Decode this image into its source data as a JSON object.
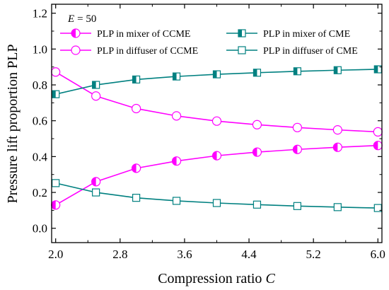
{
  "chart_data": {
    "type": "line",
    "annotation": {
      "var": "E",
      "value": "= 50"
    },
    "xlabel": {
      "text": "Compression ratio ",
      "var": "C"
    },
    "ylabel": "Pressure lift proportion PLP",
    "xlim": [
      1.95,
      6.05
    ],
    "ylim": [
      -0.08,
      1.25
    ],
    "xticks": [
      2.0,
      2.8,
      3.6,
      4.4,
      5.2,
      6.0
    ],
    "xtick_labels": [
      "2.0",
      "2.8",
      "3.6",
      "4.4",
      "5.2",
      "6.0"
    ],
    "yticks": [
      0.0,
      0.2,
      0.4,
      0.6,
      0.8,
      1.0,
      1.2
    ],
    "ytick_labels": [
      "0.0",
      "0.2",
      "0.4",
      "0.6",
      "0.8",
      "1.0",
      "1.2"
    ],
    "x": [
      2.0,
      2.5,
      3.0,
      3.5,
      4.0,
      4.5,
      5.0,
      5.5,
      6.0
    ],
    "series": [
      {
        "name": "PLP in mixer of CCME",
        "color": "#ff00ff",
        "marker": "half-filled-circle",
        "values": [
          0.13,
          0.26,
          0.335,
          0.375,
          0.405,
          0.425,
          0.44,
          0.452,
          0.462
        ]
      },
      {
        "name": "PLP in diffuser of CCME",
        "color": "#ff00ff",
        "marker": "open-circle",
        "values": [
          0.872,
          0.738,
          0.668,
          0.627,
          0.598,
          0.578,
          0.562,
          0.549,
          0.538
        ]
      },
      {
        "name": "PLP in mixer of CME",
        "color": "#008080",
        "marker": "half-filled-square",
        "values": [
          0.748,
          0.8,
          0.83,
          0.847,
          0.859,
          0.868,
          0.876,
          0.882,
          0.887
        ]
      },
      {
        "name": "PLP in diffuser of CME",
        "color": "#008080",
        "marker": "open-square",
        "values": [
          0.252,
          0.2,
          0.17,
          0.153,
          0.141,
          0.132,
          0.124,
          0.118,
          0.113
        ]
      }
    ],
    "legend_order": [
      0,
      2,
      1,
      3
    ],
    "grid": false,
    "legend_position": "top"
  }
}
